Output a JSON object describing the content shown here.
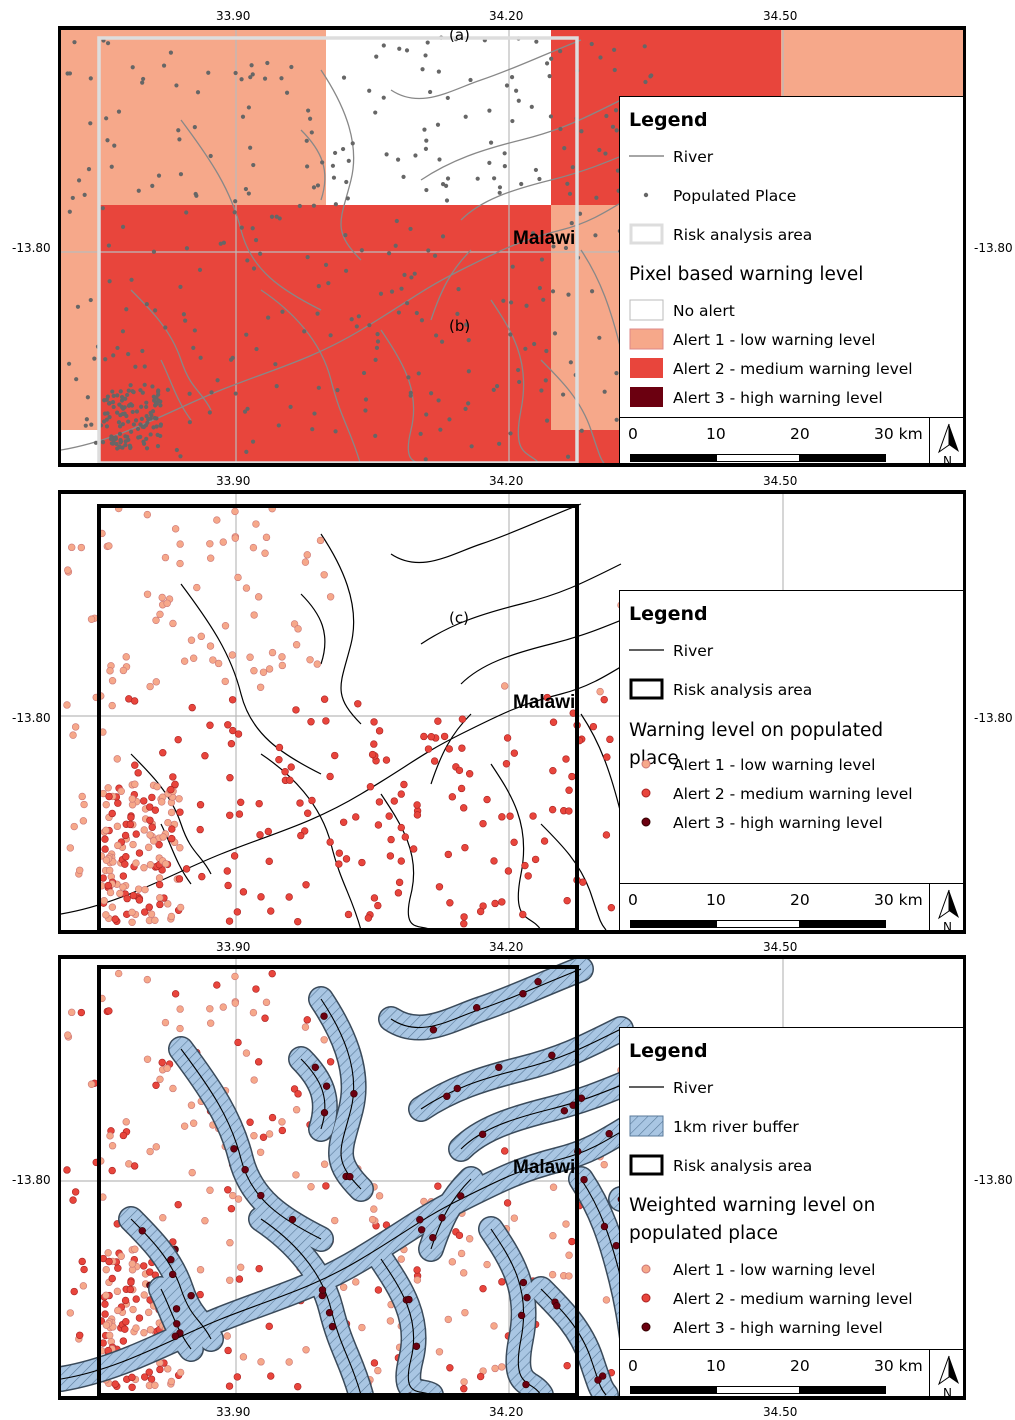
{
  "map_axes": {
    "lon_ticks": [
      "33.90",
      "34.20",
      "34.50"
    ],
    "lat_tick": "-13.80"
  },
  "country_label": "Malawi",
  "panels": [
    {
      "panel_label": "(a)",
      "inner_label": "(b)",
      "legend": {
        "title": "Legend",
        "items": [
          "River",
          "Populated Place",
          "Risk analysis area"
        ],
        "subtitle": "Pixel based warning level",
        "classes": [
          "No alert",
          "Alert 1 - low warning level",
          "Alert 2 - medium warning level",
          "Alert 3 - high warning level"
        ]
      }
    },
    {
      "panel_label": "(c)",
      "legend": {
        "title": "Legend",
        "items": [
          "River",
          "Risk analysis area"
        ],
        "subtitle": "Warning level on populated place",
        "classes": [
          "Alert 1 - low warning level",
          "Alert 2 - medium warning level",
          "Alert 3 - high warning level"
        ]
      }
    },
    {
      "legend": {
        "title": "Legend",
        "items": [
          "River",
          "1km river buffer",
          "Risk analysis area"
        ],
        "subtitle": "Weighted warning level on populated place",
        "classes": [
          "Alert 1 - low warning level",
          "Alert 2 - medium warning level",
          "Alert 3 - high warning level"
        ]
      }
    }
  ],
  "scalebar": {
    "labels": [
      "0",
      "10",
      "20",
      "30 km"
    ]
  },
  "north_arrow_label": "N",
  "colors": {
    "no_alert": "#ffffff",
    "alert1": "#f6a88a",
    "alert2": "#e8453c",
    "alert3": "#6b0010",
    "populated_place": "#666666",
    "river": "#000000",
    "buffer_fill": "#a9c6e3"
  },
  "icons": [
    "north-arrow-icon"
  ]
}
